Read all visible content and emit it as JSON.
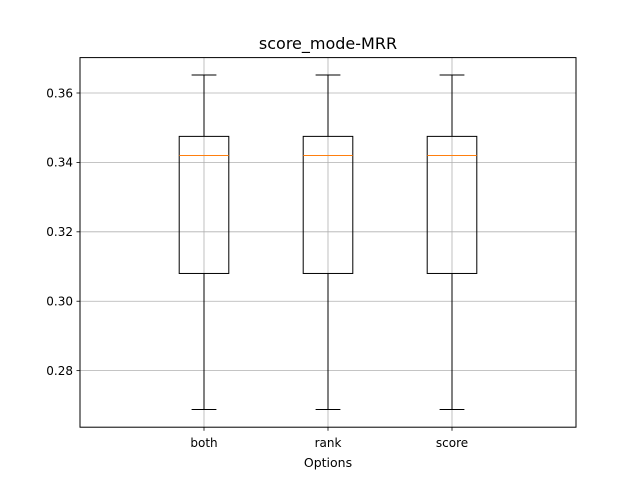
{
  "chart_data": {
    "type": "box",
    "title": "score_mode-MRR",
    "xlabel": "Options",
    "ylabel": "",
    "categories": [
      "both",
      "rank",
      "score"
    ],
    "boxes": [
      {
        "name": "both",
        "whisker_low": 0.2688,
        "q1": 0.308,
        "median": 0.342,
        "q3": 0.3475,
        "whisker_high": 0.3652
      },
      {
        "name": "rank",
        "whisker_low": 0.2688,
        "q1": 0.308,
        "median": 0.342,
        "q3": 0.3475,
        "whisker_high": 0.3652
      },
      {
        "name": "score",
        "whisker_low": 0.2688,
        "q1": 0.308,
        "median": 0.342,
        "q3": 0.3475,
        "whisker_high": 0.3652
      }
    ],
    "ylim": [
      0.2637,
      0.3702
    ],
    "yticks": [
      0.28,
      0.3,
      0.32,
      0.34,
      0.36
    ],
    "ytick_labels": [
      "0.28",
      "0.30",
      "0.32",
      "0.34",
      "0.36"
    ],
    "grid": true,
    "colors": {
      "box": "#000000",
      "median": "#ff7f0e",
      "grid": "#b0b0b0"
    }
  }
}
